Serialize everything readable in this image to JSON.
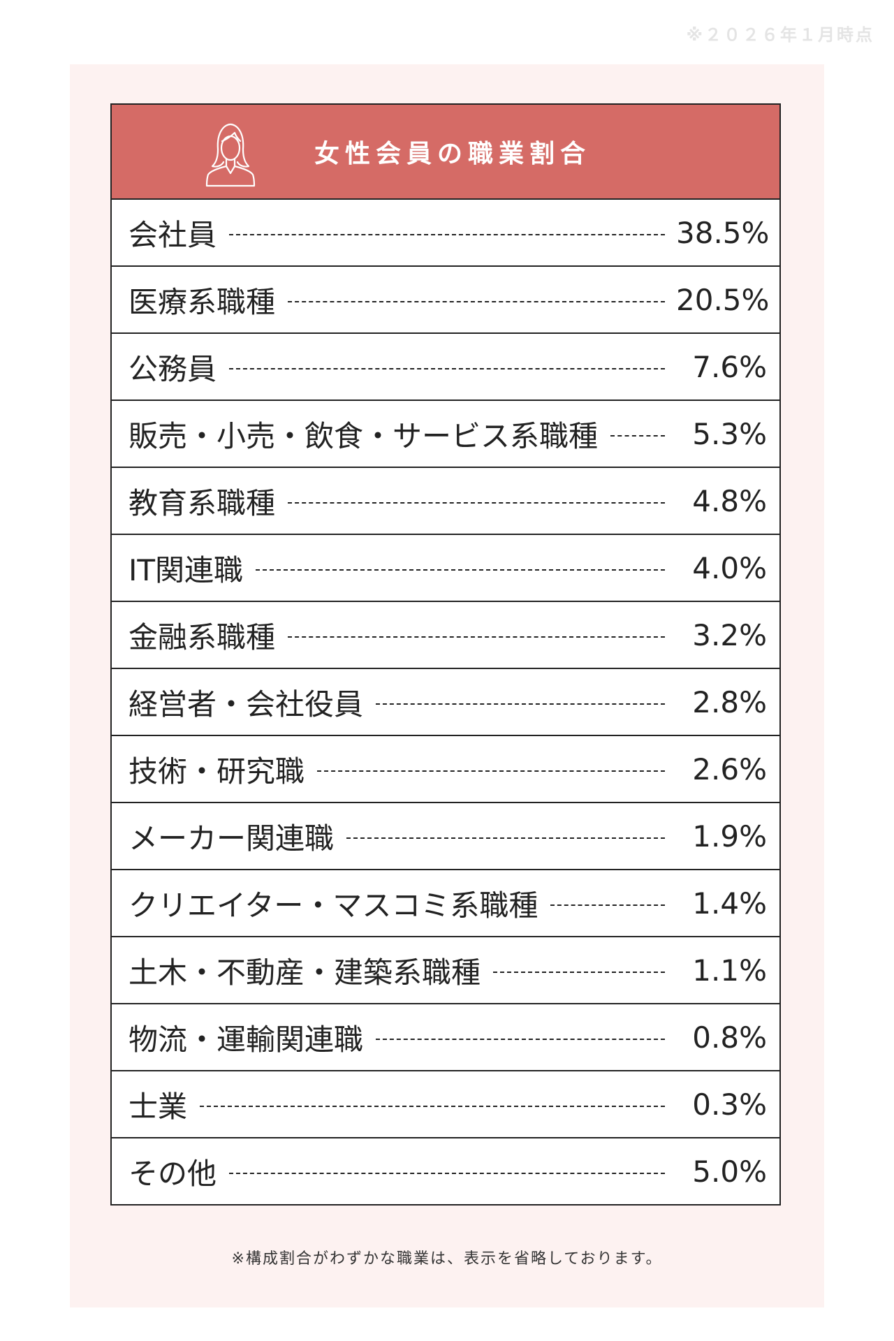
{
  "as_of": "※２０２６年１月時点",
  "title": "女性会員の職業割合",
  "icon": "woman-icon",
  "rows": [
    {
      "label": "会社員",
      "value": "38.5%"
    },
    {
      "label": "医療系職種",
      "value": "20.5%"
    },
    {
      "label": "公務員",
      "value": "7.6%"
    },
    {
      "label": "販売・小売・飲食・サービス系職種",
      "value": "5.3%"
    },
    {
      "label": "教育系職種",
      "value": "4.8%"
    },
    {
      "label": "IT関連職",
      "value": "4.0%"
    },
    {
      "label": "金融系職種",
      "value": "3.2%"
    },
    {
      "label": "経営者・会社役員",
      "value": "2.8%"
    },
    {
      "label": "技術・研究職",
      "value": "2.6%"
    },
    {
      "label": "メーカー関連職",
      "value": "1.9%"
    },
    {
      "label": "クリエイター・マスコミ系職種",
      "value": "1.4%"
    },
    {
      "label": "土木・不動産・建築系職種",
      "value": "1.1%"
    },
    {
      "label": "物流・運輸関連職",
      "value": "0.8%"
    },
    {
      "label": "士業",
      "value": "0.3%"
    },
    {
      "label": "その他",
      "value": "5.0%"
    }
  ],
  "footnote": "※構成割合がわずかな職業は、表示を省略しております。",
  "colors": {
    "header": "#d56b66",
    "panel": "#fdf2f1",
    "border": "#222222"
  }
}
